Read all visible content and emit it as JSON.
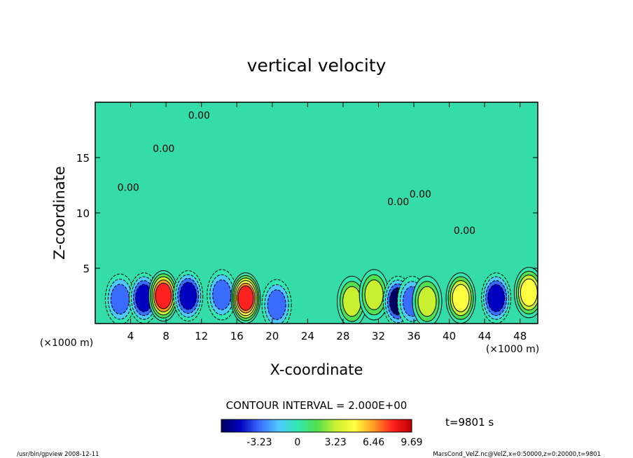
{
  "chart_data": {
    "type": "heatmap",
    "title": "vertical velocity",
    "xlabel": "X-coordinate",
    "ylabel": "Z-coordinate",
    "x_unit": "(×1000 m)",
    "y_unit": "(×1000 m)",
    "x_ticks": [
      4,
      8,
      12,
      16,
      20,
      24,
      28,
      32,
      36,
      40,
      44,
      48
    ],
    "y_ticks": [
      5,
      10,
      15
    ],
    "xlim": [
      0,
      50
    ],
    "ylim": [
      0,
      20
    ],
    "contour_label": "0.00",
    "contour_interval_text": "CONTOUR INTERVAL = 2.000E+00",
    "time_text": "t=9801 s",
    "colorbar": {
      "ticks": [
        "-3.23",
        "0",
        "3.23",
        "6.46",
        "9.69"
      ],
      "tick_values": [
        -3.23,
        0,
        3.23,
        6.46,
        9.69
      ],
      "range": [
        -6.46,
        9.69
      ],
      "colors": [
        "#000060",
        "#0000c0",
        "#3a6cff",
        "#4fc8ff",
        "#30e8b0",
        "#50e050",
        "#c8f030",
        "#ffff40",
        "#ff9a20",
        "#ff2020",
        "#c00000"
      ]
    },
    "features": [
      {
        "x": 2.8,
        "z": 2.2,
        "value": -3.8
      },
      {
        "x": 5.5,
        "z": 2.3,
        "value": -4.5
      },
      {
        "x": 7.7,
        "z": 2.5,
        "value": 8.0
      },
      {
        "x": 10.5,
        "z": 2.5,
        "value": -4.5
      },
      {
        "x": 14.3,
        "z": 2.6,
        "value": -3.2
      },
      {
        "x": 17.0,
        "z": 2.3,
        "value": 8.8
      },
      {
        "x": 20.5,
        "z": 1.7,
        "value": -2.8
      },
      {
        "x": 29.0,
        "z": 2.0,
        "value": 4.0
      },
      {
        "x": 31.5,
        "z": 2.6,
        "value": 3.5
      },
      {
        "x": 34.2,
        "z": 2.0,
        "value": -6.0
      },
      {
        "x": 35.8,
        "z": 2.0,
        "value": -4.0
      },
      {
        "x": 37.5,
        "z": 2.0,
        "value": 3.0
      },
      {
        "x": 41.3,
        "z": 2.3,
        "value": 5.3
      },
      {
        "x": 45.3,
        "z": 2.3,
        "value": -4.6
      },
      {
        "x": 49.0,
        "z": 2.8,
        "value": 4.8
      }
    ]
  },
  "footer": {
    "left": "/usr/bin/gpview  2008-12-11",
    "right": "MarsCond_VelZ.nc@VelZ,x=0:50000,z=0:20000,t=9801"
  }
}
